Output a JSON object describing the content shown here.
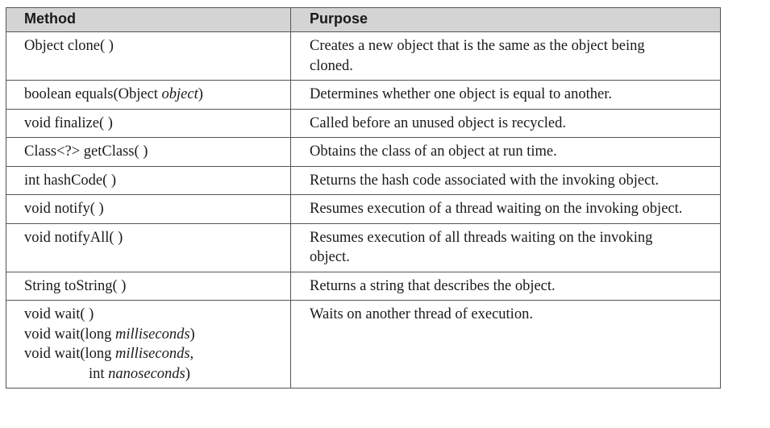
{
  "headers": {
    "method": "Method",
    "purpose": "Purpose"
  },
  "rows": [
    {
      "method": "Object clone( )",
      "purpose": "Creates a new object that is the same as the object being cloned."
    },
    {
      "method_pre": "boolean equals(Object ",
      "method_param": "object",
      "method_post": ")",
      "purpose": "Determines whether one object is equal to another."
    },
    {
      "method": "void finalize( )",
      "purpose": "Called before an unused object is recycled."
    },
    {
      "method": "Class<?> getClass( )",
      "purpose": "Obtains the class of an object at run time."
    },
    {
      "method": "int hashCode( )",
      "purpose": "Returns the hash code associated with the invoking object."
    },
    {
      "method": "void notify( )",
      "purpose": "Resumes execution of a thread waiting on the invoking object."
    },
    {
      "method": "void notifyAll( )",
      "purpose": "Resumes execution of all threads waiting on the invoking object."
    },
    {
      "method": "String toString( )",
      "purpose": "Returns a string that describes the object."
    },
    {
      "wait1": "void wait( )",
      "wait2_pre": "void wait(long ",
      "wait2_param": "milliseconds",
      "wait2_post": ")",
      "wait3_pre": "void wait(long ",
      "wait3_param": "milliseconds",
      "wait3_post": ",",
      "wait4_pre": "int ",
      "wait4_param": "nanoseconds",
      "wait4_post": ")",
      "purpose": "Waits on another thread of execution."
    }
  ]
}
